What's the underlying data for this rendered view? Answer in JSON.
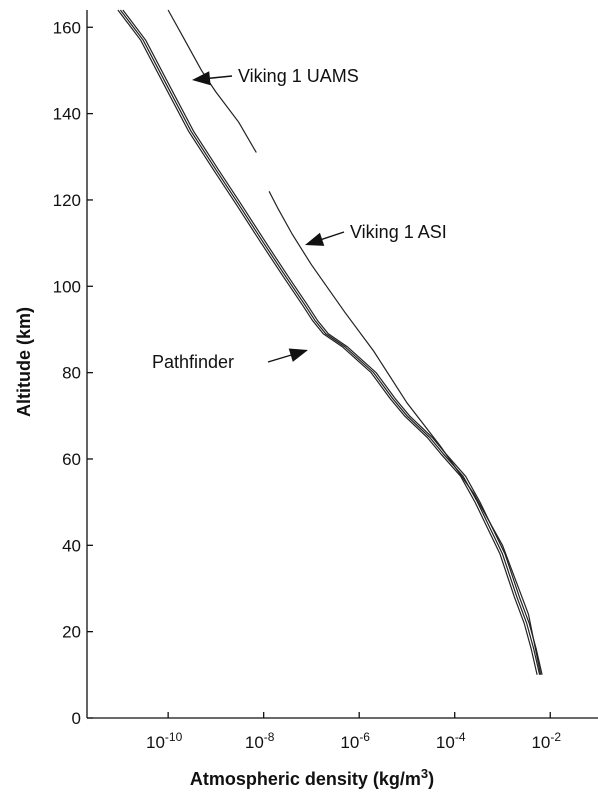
{
  "chart_data": {
    "type": "line",
    "xlabel": "Atmospheric density (kg/m3)",
    "ylabel": "Altitude (km)",
    "x_scale": "log",
    "xlim": [
      2e-12,
      0.1
    ],
    "ylim": [
      0,
      164
    ],
    "grid": false,
    "x_ticks": [
      {
        "value": 1e-10,
        "base": "10",
        "exp": "-10"
      },
      {
        "value": 1e-08,
        "base": "10",
        "exp": "-8"
      },
      {
        "value": 1e-06,
        "base": "10",
        "exp": "-6"
      },
      {
        "value": 0.0001,
        "base": "10",
        "exp": "-4"
      },
      {
        "value": 0.01,
        "base": "10",
        "exp": "-2"
      }
    ],
    "y_ticks": [
      "0",
      "20",
      "40",
      "60",
      "80",
      "100",
      "120",
      "140",
      "160"
    ],
    "series": [
      {
        "name": "Viking 1 UAMS",
        "color": "#222222",
        "points": [
          [
            1e-10,
            164
          ],
          [
            2e-10,
            158
          ],
          [
            5e-10,
            150
          ],
          [
            1e-09,
            145
          ],
          [
            3e-09,
            138
          ],
          [
            7e-09,
            131
          ]
        ]
      },
      {
        "name": "Viking 1 ASI",
        "color": "#222222",
        "points": [
          [
            1.3e-08,
            122
          ],
          [
            2e-08,
            118
          ],
          [
            4e-08,
            112
          ],
          [
            1e-07,
            105
          ],
          [
            5e-07,
            94
          ],
          [
            2e-06,
            85
          ],
          [
            1e-05,
            73
          ],
          [
            5e-05,
            63
          ],
          [
            0.00025,
            52
          ],
          [
            0.001,
            40
          ],
          [
            0.0035,
            24
          ],
          [
            0.0063,
            10
          ]
        ]
      },
      {
        "name": "Pathfinder",
        "color": "#222222",
        "points": [
          [
            1e-11,
            164
          ],
          [
            3e-11,
            157
          ],
          [
            1e-10,
            146
          ],
          [
            3e-10,
            136
          ],
          [
            1e-09,
            127
          ],
          [
            3e-09,
            119
          ],
          [
            1e-08,
            110
          ],
          [
            3e-08,
            102
          ],
          [
            7e-08,
            96
          ],
          [
            1.2e-07,
            92
          ],
          [
            2e-07,
            89
          ],
          [
            5e-07,
            86
          ],
          [
            1e-06,
            83
          ],
          [
            2e-06,
            80
          ],
          [
            5e-06,
            74
          ],
          [
            1e-05,
            70
          ],
          [
            3e-05,
            65
          ],
          [
            6e-05,
            61
          ],
          [
            0.00015,
            56
          ],
          [
            0.0003,
            50
          ],
          [
            0.001,
            38
          ],
          [
            0.002,
            28
          ],
          [
            0.0032,
            22
          ],
          [
            0.0045,
            16
          ],
          [
            0.006,
            10
          ]
        ]
      }
    ],
    "annotations": [
      {
        "text": "Viking 1 UAMS",
        "series": "Viking 1 UAMS"
      },
      {
        "text": "Viking 1 ASI",
        "series": "Viking 1 ASI"
      },
      {
        "text": "Pathfinder",
        "series": "Pathfinder"
      }
    ]
  }
}
